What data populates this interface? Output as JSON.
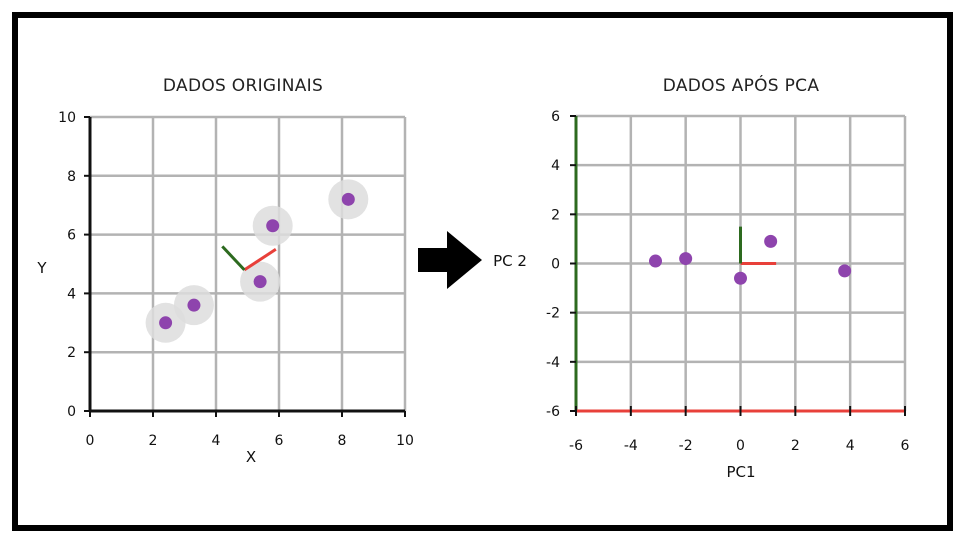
{
  "colors": {
    "grid": "#b3b3b3",
    "axis": "#111111",
    "point": "#8e44ad",
    "halo": "#dddddd",
    "pc1": "#e8403a",
    "pc2": "#2d6a1f",
    "arrow": "#000000"
  },
  "arrow_icon": "right-arrow-icon",
  "chart_data": [
    {
      "type": "scatter",
      "title": "DADOS ORIGINAIS",
      "xlabel": "X",
      "ylabel": "Y",
      "xlim": [
        0,
        10
      ],
      "ylim": [
        0,
        10
      ],
      "xticks": [
        0,
        2,
        4,
        6,
        8,
        10
      ],
      "yticks": [
        0,
        2,
        4,
        6,
        8,
        10
      ],
      "grid": true,
      "points": [
        {
          "x": 2.4,
          "y": 3.0
        },
        {
          "x": 3.3,
          "y": 3.6
        },
        {
          "x": 5.4,
          "y": 4.4
        },
        {
          "x": 5.8,
          "y": 6.3
        },
        {
          "x": 8.2,
          "y": 7.2
        }
      ],
      "highlight_halos": true,
      "principal_axes": {
        "origin": {
          "x": 4.9,
          "y": 4.8
        },
        "pc1_end": {
          "x": 5.9,
          "y": 5.5
        },
        "pc2_end": {
          "x": 4.2,
          "y": 5.6
        }
      }
    },
    {
      "type": "scatter",
      "title": "DADOS APÓS PCA",
      "xlabel": "PC1",
      "ylabel": "PC 2",
      "xlim": [
        -6,
        6
      ],
      "ylim": [
        -6,
        6
      ],
      "xticks": [
        -6,
        -4,
        -2,
        0,
        2,
        4,
        6
      ],
      "yticks": [
        -6,
        -4,
        -2,
        0,
        2,
        4,
        6
      ],
      "grid": true,
      "points": [
        {
          "x": -3.1,
          "y": 0.1
        },
        {
          "x": -2.0,
          "y": 0.2
        },
        {
          "x": 0.0,
          "y": -0.6
        },
        {
          "x": 1.1,
          "y": 0.9
        },
        {
          "x": 3.8,
          "y": -0.3
        }
      ],
      "principal_axes": {
        "origin": {
          "x": 0,
          "y": 0
        },
        "pc1_end": {
          "x": 1.3,
          "y": 0
        },
        "pc2_end": {
          "x": 0,
          "y": 1.5
        }
      }
    }
  ]
}
